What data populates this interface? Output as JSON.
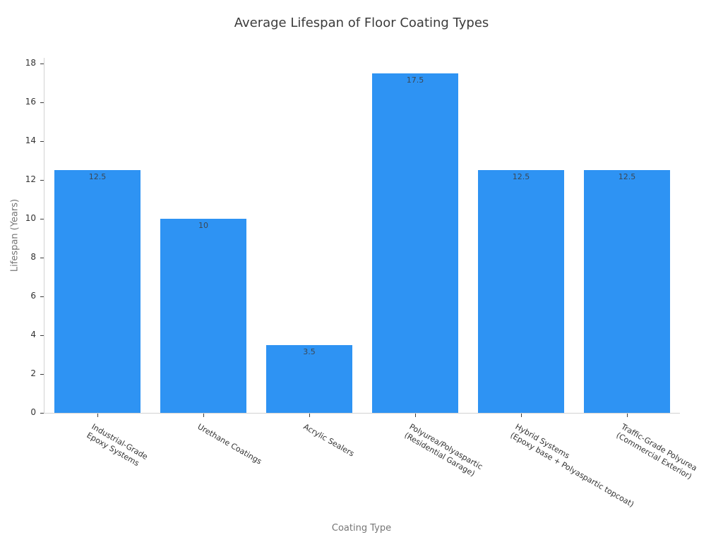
{
  "chart_data": {
    "type": "bar",
    "title": "Average Lifespan of Floor Coating Types",
    "xlabel": "Coating Type",
    "ylabel": "Lifespan (Years)",
    "categories": [
      [
        "Industrial-Grade",
        "Epoxy Systems"
      ],
      [
        "Urethane Coatings"
      ],
      [
        "Acrylic Sealers"
      ],
      [
        "Polyurea/Polyaspartic",
        "(Residential Garage)"
      ],
      [
        "Hybrid Systems",
        "(Epoxy base + Polyaspartic topcoat)"
      ],
      [
        "Traffic-Grade Polyurea",
        "(Commercial Exterior)"
      ]
    ],
    "values": [
      12.5,
      10,
      3.5,
      17.5,
      12.5,
      12.5
    ],
    "value_labels": [
      "12.5",
      "10",
      "3.5",
      "17.5",
      "12.5",
      "12.5"
    ],
    "ylim": [
      0,
      18.3
    ],
    "y_ticks": [
      0,
      2,
      4,
      6,
      8,
      10,
      12,
      14,
      16,
      18
    ],
    "x_tick_rotation_deg": 30,
    "grid": false,
    "legend": null,
    "colors": {
      "bar_fill": "#2E93F3",
      "value_label": "#3b4754",
      "tick_label": "#333333",
      "axis_title": "#767676",
      "title": "#3b3b3b",
      "spine": "#d2d2d2",
      "background": "#ffffff"
    }
  }
}
